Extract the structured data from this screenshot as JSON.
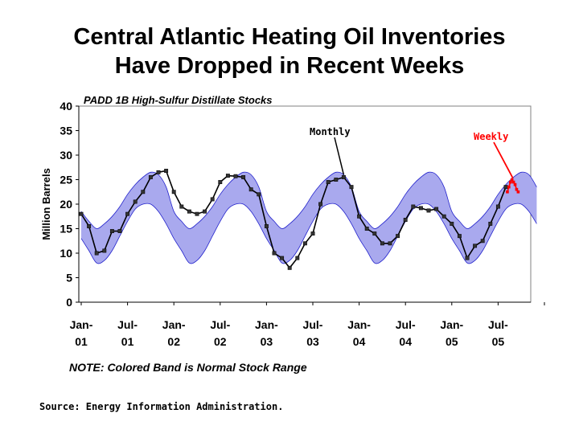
{
  "chart_data": {
    "type": "line",
    "title_lines": [
      "Central Atlantic Heating Oil Inventories",
      "Have Dropped in Recent Weeks"
    ],
    "subtitle": "PADD 1B High-Sulfur Distillate Stocks",
    "ylabel": "Million Barrels",
    "ylim": [
      0,
      40
    ],
    "yticks": [
      "0",
      "5",
      "10",
      "15",
      "20",
      "25",
      "30",
      "35",
      "40"
    ],
    "x_tick_labels": [
      {
        "month": "Jan-",
        "year": "01"
      },
      {
        "month": "Jul-",
        "year": "01"
      },
      {
        "month": "Jan-",
        "year": "02"
      },
      {
        "month": "Jul-",
        "year": "02"
      },
      {
        "month": "Jan-",
        "year": "03"
      },
      {
        "month": "Jul-",
        "year": "03"
      },
      {
        "month": "Jan-",
        "year": "04"
      },
      {
        "month": "Jul-",
        "year": "04"
      },
      {
        "month": "Jan-",
        "year": "05"
      },
      {
        "month": "Jul-",
        "year": "05"
      }
    ],
    "x_start": "Jan-01",
    "normal_range_upper": [
      18.5,
      16.5,
      15,
      16,
      17.5,
      19.5,
      22,
      24,
      25.5,
      26.5,
      26,
      23.5
    ],
    "normal_range_lower": [
      13,
      10.5,
      8,
      8.5,
      10.5,
      13.5,
      16.5,
      19,
      20,
      20,
      18.5,
      16
    ],
    "monthly": {
      "name": "Monthly",
      "values": [
        18,
        15.5,
        10,
        10.5,
        14.5,
        14.5,
        18,
        20.5,
        22.5,
        25.5,
        26.5,
        26.8,
        22.5,
        19.5,
        18.5,
        18,
        18.5,
        21,
        24.5,
        25.8,
        25.7,
        25.5,
        23,
        22,
        15.5,
        10,
        9,
        7,
        9,
        12,
        14,
        20,
        24.5,
        25,
        25.5,
        23.5,
        17.5,
        15,
        14,
        12,
        12,
        13.5,
        16.8,
        19.5,
        19.2,
        18.7,
        19,
        17.5,
        16,
        13.5,
        9,
        11.5,
        12.5,
        16,
        19.5,
        23.5
      ]
    },
    "weekly": {
      "name": "Weekly",
      "points": [
        [
          55.2,
          22.5
        ],
        [
          55.4,
          23.5
        ],
        [
          55.6,
          24.5
        ],
        [
          55.8,
          25
        ],
        [
          56.0,
          24.5
        ],
        [
          56.2,
          24
        ],
        [
          56.4,
          23
        ],
        [
          56.6,
          22.5
        ]
      ]
    },
    "colors": {
      "band": "#a9a9ee",
      "band_edge": "#2222cc",
      "monthly_line": "#000000",
      "weekly_line": "#ff0000",
      "plot_bg": "#ffffff"
    },
    "grid": false
  },
  "note": "NOTE: Colored Band is Normal Stock Range",
  "source": "Source: Energy Information Administration."
}
